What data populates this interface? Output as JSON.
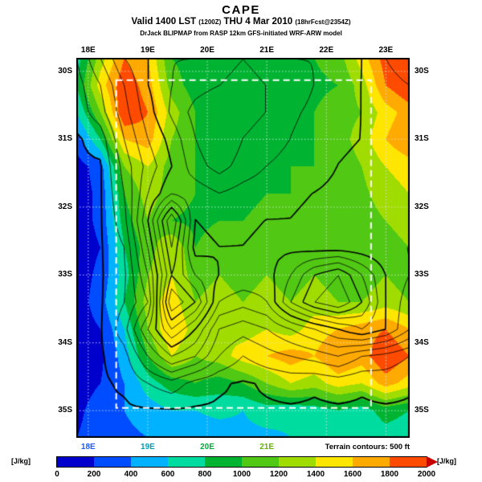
{
  "header": {
    "title": "CAPE",
    "valid_prefix": "Valid 1400 LST",
    "init_time": "(1200Z)",
    "valid_date": "THU 4 Mar 2010",
    "fcst_note": "(18hrFcst@2354Z)",
    "model_line": "DrJack BLIPMAP from RASP 12km GFS-initiated WRF-ARW model"
  },
  "axes": {
    "top_lons": [
      "18E",
      "19E",
      "20E",
      "21E",
      "22E",
      "23E"
    ],
    "top_lon_values": [
      18,
      19,
      20,
      21,
      22,
      23
    ],
    "left_lats": [
      "30S",
      "31S",
      "32S",
      "33S",
      "34S",
      "35S"
    ],
    "right_lats": [
      "30S",
      "31S",
      "32S",
      "33S",
      "34S",
      "35S"
    ],
    "lat_values": [
      30,
      31,
      32,
      33,
      34,
      35
    ],
    "bottom_lons": [
      "18E",
      "19E",
      "20E",
      "21E"
    ],
    "bottom_lon_values": [
      18,
      19,
      20,
      21
    ],
    "bottom_lon_colors": [
      "#1e5aff",
      "#00a0b4",
      "#00aa3c",
      "#64b400"
    ]
  },
  "footer": {
    "terrain_note": "Terrain contours: 500 ft"
  },
  "colorbar": {
    "units_left": "[J/kg]",
    "units_right": "[J/kg]",
    "ticks": [
      "0",
      "200",
      "400",
      "600",
      "800",
      "1000",
      "1200",
      "1400",
      "1600",
      "1800",
      "2000"
    ]
  },
  "chart_data": {
    "type": "heatmap",
    "title": "CAPE",
    "units": "J/kg",
    "valid": "1400 LST (1200Z) THU 4 Mar 2010",
    "forecast": "18hrFcst@2354Z",
    "lon_range": [
      17.8,
      23.4
    ],
    "lat_range": [
      29.8,
      35.4
    ],
    "lons": [
      17.8,
      18.2,
      18.6,
      19.0,
      19.4,
      19.8,
      20.2,
      20.6,
      21.0,
      21.4,
      21.8,
      22.2,
      22.6,
      23.0,
      23.4
    ],
    "lats": [
      29.8,
      30.2,
      30.6,
      31.0,
      31.4,
      31.8,
      32.2,
      32.6,
      33.0,
      33.4,
      33.8,
      34.2,
      34.6,
      35.0,
      35.4
    ],
    "colorbar_ticks": [
      0,
      200,
      400,
      600,
      800,
      1000,
      1200,
      1400,
      1600,
      1800,
      2000
    ],
    "colors": [
      "#0000cd",
      "#004cff",
      "#00b2ff",
      "#00dca0",
      "#00b432",
      "#50c814",
      "#a0dc00",
      "#ffe600",
      "#ffaa00",
      "#ff4b00",
      "#c80000"
    ],
    "bin_size": 200,
    "grid_line_lons": [
      18,
      19,
      20,
      21,
      22,
      23
    ],
    "grid_line_lats": [
      30,
      31,
      32,
      33,
      34,
      35
    ],
    "inner_domain": {
      "lon_min": 18.47,
      "lat_min": 30.13,
      "lon_max": 22.75,
      "lat_max": 34.96
    },
    "terrain_contour_interval_ft": 500,
    "cape_grid": [
      [
        700,
        1300,
        1800,
        1600,
        1000,
        900,
        800,
        900,
        800,
        900,
        1000,
        1100,
        1500,
        1900,
        2000
      ],
      [
        800,
        1500,
        1950,
        1700,
        1100,
        900,
        800,
        850,
        800,
        850,
        950,
        1000,
        1300,
        1800,
        2000
      ],
      [
        600,
        1200,
        2000,
        1800,
        1300,
        1000,
        900,
        900,
        850,
        900,
        1000,
        1100,
        1200,
        1500,
        1700
      ],
      [
        300,
        800,
        1600,
        1700,
        1200,
        1000,
        900,
        850,
        900,
        950,
        1000,
        1100,
        1300,
        1600,
        1800
      ],
      [
        100,
        300,
        1200,
        1400,
        1100,
        1000,
        950,
        900,
        950,
        1000,
        1000,
        1050,
        1200,
        1400,
        1500
      ],
      [
        100,
        250,
        1000,
        1300,
        1100,
        1000,
        1000,
        950,
        1000,
        1000,
        1050,
        1100,
        1150,
        1300,
        1400
      ],
      [
        100,
        250,
        900,
        1200,
        1000,
        950,
        1000,
        1000,
        1050,
        1000,
        1100,
        1050,
        1100,
        1200,
        1300
      ],
      [
        100,
        200,
        800,
        1100,
        1400,
        1000,
        1100,
        1100,
        1000,
        1100,
        1000,
        1100,
        1000,
        1100,
        1200
      ],
      [
        100,
        250,
        700,
        1200,
        1400,
        1100,
        1200,
        1100,
        1200,
        1100,
        1200,
        1100,
        1100,
        1200,
        1100
      ],
      [
        100,
        300,
        800,
        1300,
        1500,
        1200,
        1300,
        1200,
        1300,
        1200,
        1300,
        1200,
        1200,
        1300,
        1200
      ],
      [
        100,
        200,
        600,
        1200,
        1600,
        1300,
        1400,
        1300,
        1400,
        1300,
        1500,
        1600,
        1700,
        1800,
        1600
      ],
      [
        100,
        150,
        500,
        1000,
        1400,
        1200,
        1300,
        1500,
        1600,
        1700,
        1600,
        1800,
        1700,
        2000,
        1800
      ],
      [
        100,
        200,
        400,
        700,
        900,
        1000,
        900,
        1000,
        1200,
        1400,
        1300,
        1500,
        1400,
        1700,
        1500
      ],
      [
        150,
        300,
        400,
        500,
        600,
        600,
        650,
        600,
        700,
        650,
        700,
        800,
        700,
        900,
        800
      ],
      [
        200,
        300,
        350,
        400,
        450,
        500,
        500,
        550,
        550,
        600,
        600,
        650,
        600,
        700,
        650
      ]
    ],
    "terrain_ft_grid": [
      [
        500,
        1500,
        2500,
        3000,
        3500,
        3500,
        3800,
        4000,
        3800,
        3500,
        3500,
        3500,
        3000,
        2500,
        2000
      ],
      [
        300,
        1000,
        2000,
        3000,
        3500,
        3800,
        4000,
        4200,
        4000,
        3800,
        3500,
        3200,
        3000,
        2800,
        2500
      ],
      [
        200,
        800,
        1800,
        2800,
        3600,
        4200,
        4500,
        4200,
        4000,
        3600,
        3400,
        3200,
        3000,
        2800,
        2600
      ],
      [
        0,
        200,
        1500,
        2500,
        3200,
        4000,
        4500,
        4000,
        3800,
        3500,
        3300,
        3100,
        3000,
        2800,
        2600
      ],
      [
        0,
        0,
        1200,
        2200,
        3000,
        3800,
        4200,
        3800,
        3500,
        3300,
        3200,
        3000,
        2900,
        2800,
        2600
      ],
      [
        0,
        0,
        1000,
        2500,
        3500,
        3200,
        3500,
        3300,
        3200,
        3100,
        3000,
        2900,
        2800,
        2700,
        2600
      ],
      [
        0,
        0,
        800,
        3000,
        5500,
        3000,
        3200,
        3100,
        3000,
        3000,
        2900,
        2800,
        2800,
        2700,
        2600
      ],
      [
        0,
        0,
        500,
        2500,
        5000,
        2800,
        3000,
        3000,
        2900,
        2900,
        2800,
        2800,
        2700,
        2600,
        2500
      ],
      [
        0,
        0,
        400,
        2000,
        4500,
        3500,
        3000,
        2900,
        2800,
        3500,
        4500,
        5000,
        4000,
        3000,
        2500
      ],
      [
        0,
        0,
        500,
        1500,
        5500,
        4500,
        2500,
        2200,
        2500,
        4000,
        5000,
        5500,
        4500,
        3000,
        2200
      ],
      [
        0,
        0,
        800,
        2500,
        4000,
        3000,
        1500,
        1200,
        1500,
        2000,
        2500,
        3000,
        3500,
        3000,
        2000
      ],
      [
        0,
        0,
        300,
        1500,
        2500,
        2000,
        1000,
        500,
        800,
        1000,
        1200,
        1500,
        1000,
        800,
        500
      ],
      [
        0,
        0,
        100,
        500,
        800,
        300,
        100,
        0,
        100,
        200,
        100,
        200,
        100,
        200,
        100
      ],
      [
        0,
        0,
        0,
        0,
        0,
        0,
        0,
        0,
        0,
        0,
        0,
        0,
        0,
        0,
        0
      ],
      [
        0,
        0,
        0,
        0,
        0,
        0,
        0,
        0,
        0,
        0,
        0,
        0,
        0,
        0,
        0
      ]
    ]
  }
}
